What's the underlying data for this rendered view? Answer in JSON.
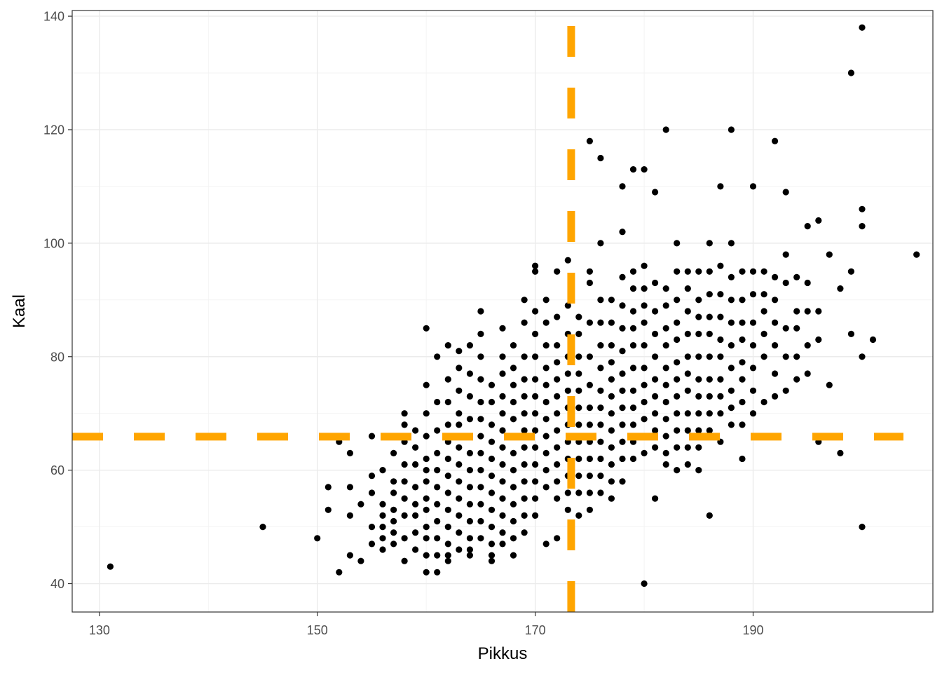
{
  "chart_data": {
    "type": "scatter",
    "title": "",
    "xlabel": "Pikkus",
    "ylabel": "Kaal",
    "xlim": [
      127.5,
      206.5
    ],
    "ylim": [
      35,
      141
    ],
    "x_ticks": [
      130,
      150,
      170,
      190
    ],
    "x_tick_labels": [
      "130",
      "150",
      "170",
      "190"
    ],
    "y_ticks": [
      40,
      60,
      80,
      100,
      120,
      140
    ],
    "y_tick_labels": [
      "40",
      "60",
      "80",
      "100",
      "120",
      "140"
    ],
    "grid": true,
    "point_color": "#000000",
    "reference_lines": [
      {
        "orientation": "vertical",
        "value": 173.3,
        "color": "#FFA500",
        "style": "dashed"
      },
      {
        "orientation": "horizontal",
        "value": 65.9,
        "color": "#FFA500",
        "style": "dashed"
      }
    ],
    "x": [
      131,
      145,
      150,
      151,
      151,
      152,
      152,
      153,
      153,
      153,
      153,
      154,
      154,
      155,
      155,
      155,
      155,
      155,
      156,
      156,
      156,
      156,
      156,
      156,
      157,
      157,
      157,
      157,
      157,
      157,
      157,
      158,
      158,
      158,
      158,
      158,
      158,
      158,
      158,
      158,
      159,
      159,
      159,
      159,
      159,
      159,
      159,
      159,
      160,
      160,
      160,
      160,
      160,
      160,
      160,
      160,
      160,
      160,
      160,
      160,
      160,
      161,
      161,
      161,
      161,
      161,
      161,
      161,
      161,
      161,
      161,
      161,
      162,
      162,
      162,
      162,
      162,
      162,
      162,
      162,
      162,
      162,
      162,
      162,
      162,
      163,
      163,
      163,
      163,
      163,
      163,
      163,
      163,
      163,
      163,
      163,
      163,
      164,
      164,
      164,
      164,
      164,
      164,
      164,
      164,
      164,
      164,
      164,
      164,
      164,
      165,
      165,
      165,
      165,
      165,
      165,
      165,
      165,
      165,
      165,
      165,
      165,
      165,
      166,
      166,
      166,
      166,
      166,
      166,
      166,
      166,
      166,
      166,
      166,
      166,
      167,
      167,
      167,
      167,
      167,
      167,
      167,
      167,
      167,
      167,
      167,
      167,
      167,
      168,
      168,
      168,
      168,
      168,
      168,
      168,
      168,
      168,
      168,
      168,
      168,
      168,
      169,
      169,
      169,
      169,
      169,
      169,
      169,
      169,
      169,
      169,
      169,
      169,
      169,
      170,
      170,
      170,
      170,
      170,
      170,
      170,
      170,
      170,
      170,
      170,
      170,
      170,
      170,
      171,
      171,
      171,
      171,
      171,
      171,
      171,
      171,
      171,
      171,
      171,
      171,
      172,
      172,
      172,
      172,
      172,
      172,
      172,
      172,
      172,
      172,
      172,
      172,
      172,
      173,
      173,
      173,
      173,
      173,
      173,
      173,
      173,
      173,
      173,
      173,
      173,
      173,
      174,
      174,
      174,
      174,
      174,
      174,
      174,
      174,
      174,
      174,
      174,
      174,
      175,
      175,
      175,
      175,
      175,
      175,
      175,
      175,
      175,
      175,
      175,
      175,
      175,
      176,
      176,
      176,
      176,
      176,
      176,
      176,
      176,
      176,
      176,
      176,
      176,
      176,
      177,
      177,
      177,
      177,
      177,
      177,
      177,
      177,
      177,
      177,
      177,
      177,
      178,
      178,
      178,
      178,
      178,
      178,
      178,
      178,
      178,
      178,
      178,
      178,
      178,
      179,
      179,
      179,
      179,
      179,
      179,
      179,
      179,
      179,
      179,
      179,
      179,
      180,
      180,
      180,
      180,
      180,
      180,
      180,
      180,
      180,
      180,
      180,
      180,
      180,
      181,
      181,
      181,
      181,
      181,
      181,
      181,
      181,
      181,
      181,
      181,
      182,
      182,
      182,
      182,
      182,
      182,
      182,
      182,
      182,
      182,
      182,
      182,
      183,
      183,
      183,
      183,
      183,
      183,
      183,
      183,
      183,
      183,
      183,
      183,
      184,
      184,
      184,
      184,
      184,
      184,
      184,
      184,
      184,
      184,
      184,
      185,
      185,
      185,
      185,
      185,
      185,
      185,
      185,
      185,
      185,
      185,
      186,
      186,
      186,
      186,
      186,
      186,
      186,
      186,
      186,
      186,
      186,
      187,
      187,
      187,
      187,
      187,
      187,
      187,
      187,
      187,
      187,
      188,
      188,
      188,
      188,
      188,
      188,
      188,
      188,
      188,
      188,
      189,
      189,
      189,
      189,
      189,
      189,
      189,
      189,
      189,
      190,
      190,
      190,
      190,
      190,
      190,
      190,
      190,
      191,
      191,
      191,
      191,
      191,
      191,
      192,
      192,
      192,
      192,
      192,
      192,
      192,
      193,
      193,
      193,
      193,
      193,
      193,
      194,
      194,
      194,
      194,
      194,
      195,
      195,
      195,
      195,
      195,
      196,
      196,
      196,
      196,
      197,
      197,
      198,
      198,
      199,
      199,
      199,
      200,
      200,
      200,
      200,
      200,
      201,
      205
    ],
    "y": [
      43,
      50,
      48,
      57,
      53,
      42,
      65,
      63,
      57,
      52,
      45,
      54,
      44,
      66,
      59,
      56,
      50,
      47,
      60,
      54,
      52,
      50,
      48,
      46,
      63,
      58,
      56,
      53,
      51,
      49,
      47,
      70,
      68,
      65,
      61,
      58,
      55,
      52,
      48,
      44,
      67,
      64,
      61,
      57,
      54,
      52,
      49,
      46,
      85,
      75,
      70,
      66,
      62,
      60,
      58,
      55,
      53,
      50,
      48,
      45,
      42,
      80,
      72,
      67,
      63,
      60,
      57,
      54,
      51,
      48,
      45,
      42,
      82,
      76,
      72,
      68,
      65,
      62,
      59,
      56,
      53,
      50,
      47,
      45,
      44,
      81,
      78,
      74,
      70,
      68,
      64,
      61,
      58,
      55,
      52,
      49,
      46,
      82,
      77,
      73,
      69,
      66,
      63,
      60,
      57,
      54,
      51,
      48,
      46,
      45,
      88,
      84,
      80,
      76,
      72,
      69,
      66,
      63,
      60,
      57,
      54,
      51,
      48,
      75,
      72,
      68,
      65,
      62,
      59,
      56,
      53,
      50,
      47,
      45,
      44,
      85,
      80,
      77,
      73,
      70,
      67,
      64,
      61,
      58,
      55,
      52,
      49,
      47,
      82,
      78,
      75,
      72,
      69,
      66,
      63,
      60,
      57,
      54,
      51,
      48,
      45,
      90,
      86,
      80,
      76,
      73,
      70,
      67,
      64,
      61,
      58,
      55,
      52,
      49,
      96,
      95,
      88,
      84,
      80,
      76,
      73,
      70,
      67,
      64,
      61,
      58,
      55,
      52,
      90,
      86,
      82,
      78,
      75,
      72,
      69,
      66,
      63,
      60,
      57,
      47,
      95,
      87,
      82,
      79,
      76,
      73,
      70,
      67,
      64,
      61,
      58,
      55,
      48,
      97,
      89,
      84,
      80,
      77,
      74,
      71,
      68,
      65,
      62,
      59,
      56,
      53,
      87,
      84,
      80,
      77,
      74,
      71,
      68,
      65,
      62,
      59,
      56,
      52,
      118,
      95,
      93,
      86,
      80,
      75,
      71,
      68,
      65,
      62,
      59,
      56,
      53,
      115,
      100,
      90,
      86,
      82,
      78,
      74,
      71,
      68,
      65,
      62,
      59,
      56,
      90,
      86,
      82,
      79,
      76,
      73,
      70,
      67,
      64,
      61,
      58,
      55,
      110,
      102,
      94,
      89,
      85,
      81,
      77,
      74,
      71,
      68,
      65,
      62,
      58,
      113,
      95,
      92,
      88,
      85,
      82,
      78,
      74,
      71,
      68,
      65,
      62,
      40,
      113,
      96,
      92,
      89,
      86,
      82,
      78,
      75,
      72,
      69,
      66,
      63,
      55,
      109,
      93,
      88,
      84,
      80,
      76,
      73,
      70,
      67,
      64,
      61,
      120,
      92,
      89,
      85,
      82,
      78,
      75,
      72,
      69,
      66,
      63,
      60,
      100,
      95,
      90,
      86,
      83,
      79,
      76,
      73,
      70,
      67,
      64,
      61,
      95,
      92,
      88,
      84,
      80,
      77,
      74,
      70,
      67,
      64,
      95,
      90,
      87,
      84,
      80,
      76,
      73,
      70,
      67,
      64,
      60,
      100,
      95,
      91,
      87,
      84,
      80,
      76,
      73,
      70,
      67,
      52,
      110,
      96,
      91,
      87,
      83,
      80,
      76,
      73,
      70,
      65,
      120,
      100,
      94,
      90,
      86,
      82,
      78,
      74,
      71,
      68,
      95,
      90,
      86,
      83,
      79,
      76,
      72,
      68,
      62,
      110,
      95,
      91,
      86,
      82,
      78,
      74,
      70,
      95,
      91,
      88,
      84,
      80,
      72,
      118,
      94,
      90,
      86,
      82,
      77,
      73,
      109,
      98,
      93,
      85,
      80,
      74,
      94,
      88,
      85,
      80,
      76,
      103,
      93,
      88,
      82,
      77,
      104,
      88,
      83,
      65,
      98,
      75,
      92,
      63,
      130,
      95,
      84,
      138,
      106,
      103,
      80,
      50,
      83,
      98
    ]
  }
}
